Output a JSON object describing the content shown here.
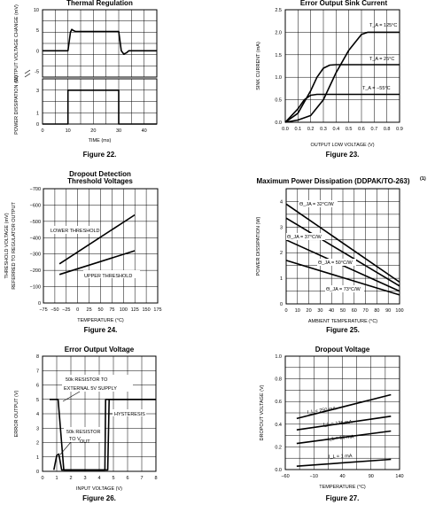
{
  "chart_data": [
    {
      "type": "line",
      "title": "Thermal Regulation",
      "caption": "Figure 22.",
      "xlabel": "TIME (ms)",
      "ylabel_top": "OUTPUT VOLTAGE CHANGE (mV)",
      "ylabel_bottom": "POWER DISSIPATION (W)",
      "xlim": [
        0,
        45
      ],
      "xticks": [
        "0",
        "10",
        "20",
        "30",
        "40"
      ],
      "yticks_top": [
        "10",
        "5",
        "0",
        "-5"
      ],
      "yticks_bottom": [
        "3",
        "1",
        "0"
      ],
      "series": [
        {
          "panel": "top",
          "points": [
            [
              0,
              0
            ],
            [
              10,
              0
            ],
            [
              11,
              4.5
            ],
            [
              11.5,
              5.2
            ],
            [
              12,
              5
            ],
            [
              13,
              4.7
            ],
            [
              30,
              4.7
            ],
            [
              31,
              0
            ],
            [
              32,
              -0.8
            ],
            [
              33,
              -0.5
            ],
            [
              34,
              0
            ],
            [
              45,
              0
            ]
          ]
        },
        {
          "panel": "bottom",
          "points": [
            [
              0,
              0
            ],
            [
              10,
              0
            ],
            [
              10,
              3
            ],
            [
              30,
              3
            ],
            [
              30,
              0
            ],
            [
              45,
              0
            ]
          ]
        }
      ],
      "grid": true
    },
    {
      "type": "line",
      "title": "Error Output Sink Current",
      "caption": "Figure 23.",
      "xlabel": "OUTPUT LOW VOLTAGE (V)",
      "ylabel": "SINK CURRENT (mA)",
      "xlim": [
        0,
        0.9
      ],
      "ylim": [
        0,
        2.5
      ],
      "xticks": [
        "0.0",
        "0.1",
        "0.2",
        "0.3",
        "0.4",
        "0.5",
        "0.6",
        "0.7",
        "0.8",
        "0.9"
      ],
      "yticks": [
        "0.0",
        "0.5",
        "1.0",
        "1.5",
        "2.0",
        "2.5"
      ],
      "series": [
        {
          "label": "T_A = 125°C",
          "points": [
            [
              0,
              0
            ],
            [
              0.1,
              0.05
            ],
            [
              0.2,
              0.15
            ],
            [
              0.3,
              0.5
            ],
            [
              0.4,
              1.1
            ],
            [
              0.5,
              1.6
            ],
            [
              0.6,
              1.95
            ],
            [
              0.65,
              2.0
            ],
            [
              0.9,
              2.0
            ]
          ]
        },
        {
          "label": "T_A = 25°C",
          "points": [
            [
              0,
              0
            ],
            [
              0.1,
              0.2
            ],
            [
              0.2,
              0.7
            ],
            [
              0.25,
              1.0
            ],
            [
              0.3,
              1.2
            ],
            [
              0.35,
              1.27
            ],
            [
              0.4,
              1.28
            ],
            [
              0.9,
              1.28
            ]
          ]
        },
        {
          "label": "T_A = −55°C",
          "points": [
            [
              0,
              0
            ],
            [
              0.1,
              0.3
            ],
            [
              0.15,
              0.5
            ],
            [
              0.2,
              0.6
            ],
            [
              0.25,
              0.62
            ],
            [
              0.9,
              0.62
            ]
          ]
        }
      ],
      "grid": true
    },
    {
      "type": "line",
      "title": "Dropout Detection Threshold Voltages",
      "caption": "Figure 24.",
      "xlabel": "TEMPERATURE (°C)",
      "ylabel": "THRESHOLD VOLTAGE (mV) REFERRED TO REGULATOR OUTPUT",
      "xlim": [
        -75,
        175
      ],
      "ylim": [
        0,
        -700
      ],
      "xticks": [
        "−75",
        "−50",
        "−25",
        "0",
        "25",
        "50",
        "75",
        "100",
        "125",
        "150",
        "175"
      ],
      "yticks": [
        "−700",
        "−600",
        "−500",
        "−400",
        "−300",
        "−200",
        "−100",
        "0"
      ],
      "series": [
        {
          "label": "LOWER THRESHOLD",
          "points": [
            [
              -40,
              -240
            ],
            [
              125,
              -540
            ]
          ]
        },
        {
          "label": "UPPER THRESHOLD",
          "points": [
            [
              -40,
              -175
            ],
            [
              125,
              -320
            ]
          ]
        }
      ],
      "grid": true
    },
    {
      "type": "line",
      "title": "Maximum Power Dissipation (DDPAK/TO-263)",
      "title_sup": "(1)",
      "caption": "Figure 25.",
      "xlabel": "AMBIENT TEMPERATURE (°C)",
      "ylabel": "POWER DISSIPATION (W)",
      "xlim": [
        0,
        100
      ],
      "ylim": [
        0,
        4.5
      ],
      "xticks": [
        "0",
        "10",
        "20",
        "30",
        "40",
        "50",
        "60",
        "70",
        "80",
        "90",
        "100"
      ],
      "yticks": [
        "0",
        "1",
        "2",
        "3",
        "4"
      ],
      "series": [
        {
          "label": "Θ_JA = 32°C/W",
          "points": [
            [
              0,
              3.9
            ],
            [
              100,
              0.85
            ]
          ]
        },
        {
          "label": "Θ_JA = 37°C/W",
          "points": [
            [
              0,
              3.35
            ],
            [
              100,
              0.7
            ]
          ]
        },
        {
          "label": "Θ_JA = 50°C/W",
          "points": [
            [
              0,
              2.5
            ],
            [
              100,
              0.5
            ]
          ]
        },
        {
          "label": "Θ_JA = 73°C/W",
          "points": [
            [
              0,
              1.7
            ],
            [
              100,
              0.35
            ]
          ]
        }
      ],
      "grid": true
    },
    {
      "type": "line",
      "title": "Error Output Voltage",
      "caption": "Figure 26.",
      "xlabel": "INPUT VOLTAGE (V)",
      "ylabel": "ERROR OUTPUT (V)",
      "xlim": [
        0,
        8
      ],
      "ylim": [
        0,
        8
      ],
      "xticks": [
        "0",
        "1",
        "2",
        "3",
        "4",
        "5",
        "6",
        "7",
        "8"
      ],
      "yticks": [
        "0",
        "1",
        "2",
        "3",
        "4",
        "5",
        "6",
        "7",
        "8"
      ],
      "annotations": [
        "50k RESISTOR TO",
        "EXTERNAL 5V SUPPLY",
        "HYSTERESIS",
        "50k RESISTOR",
        "TO V",
        "OUT"
      ],
      "series": [
        {
          "label": "50k RESISTOR TO EXTERNAL 5V SUPPLY",
          "points": [
            [
              0.5,
              5
            ],
            [
              1.1,
              5
            ],
            [
              1.5,
              0.1
            ],
            [
              4.6,
              0.1
            ],
            [
              4.7,
              5
            ],
            [
              8,
              5
            ]
          ]
        },
        {
          "label": "50k RESISTOR TO V_OUT",
          "points": [
            [
              0.8,
              0.1
            ],
            [
              1.0,
              1.1
            ],
            [
              1.15,
              1.2
            ],
            [
              1.35,
              0.1
            ],
            [
              4.4,
              0.1
            ],
            [
              4.45,
              5
            ],
            [
              8,
              5
            ]
          ]
        }
      ],
      "grid": true
    },
    {
      "type": "line",
      "title": "Dropout Voltage",
      "caption": "Figure 27.",
      "xlabel": "TEMPERATURE (°C)",
      "ylabel": "DROPOUT VOLTAGE (V)",
      "xlim": [
        -60,
        140
      ],
      "ylim": [
        0,
        1.0
      ],
      "xticks": [
        "−60",
        "−10",
        "40",
        "90",
        "140"
      ],
      "yticks": [
        "0.0",
        "0.2",
        "0.4",
        "0.6",
        "0.8",
        "1.0"
      ],
      "series": [
        {
          "label": "I_L = 250 mA",
          "points": [
            [
              -40,
              0.45
            ],
            [
              125,
              0.66
            ]
          ]
        },
        {
          "label": "I_L = 125 mA",
          "points": [
            [
              -40,
              0.35
            ],
            [
              125,
              0.47
            ]
          ]
        },
        {
          "label": "I_L = 50 mA",
          "points": [
            [
              -40,
              0.23
            ],
            [
              125,
              0.34
            ]
          ]
        },
        {
          "label": "I_L = 1 mA",
          "points": [
            [
              -40,
              0.03
            ],
            [
              125,
              0.09
            ]
          ]
        }
      ],
      "grid": true
    }
  ]
}
